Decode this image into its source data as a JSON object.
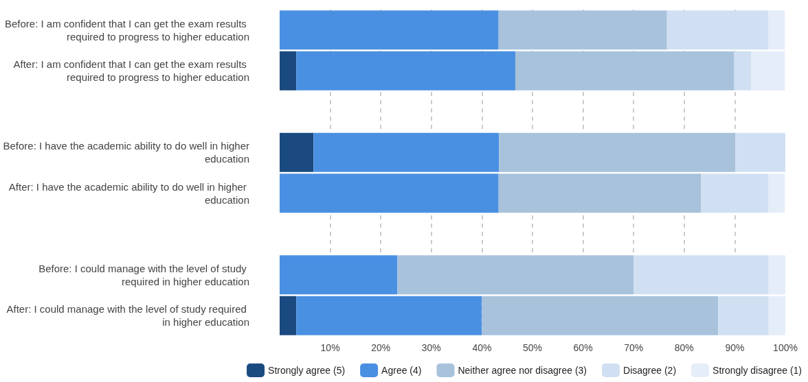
{
  "chart_data": {
    "type": "bar",
    "orientation": "horizontal",
    "stacked": true,
    "categories": [
      "Before: I am confident that I can get the exam results required to progress to higher education",
      "After: I am confident that I can get the exam results required to progress to higher education",
      null,
      "Before: I have the academic ability to do well in higher education",
      "After: I have the academic ability to do well in higher education",
      null,
      "Before: I could manage with the level of study required in higher education",
      "After: I could manage with the level of study required in higher education"
    ],
    "series": [
      {
        "name": "Strongly agree (5)",
        "color": "#1a4a80",
        "values": [
          0,
          3.3,
          null,
          6.7,
          0,
          null,
          0,
          3.3
        ]
      },
      {
        "name": "Agree (4)",
        "color": "#4a90e2",
        "values": [
          43.3,
          43.3,
          null,
          36.7,
          43.3,
          null,
          23.3,
          36.7
        ]
      },
      {
        "name": "Neither agree nor disagree (3)",
        "color": "#a8c2dc",
        "values": [
          33.3,
          43.3,
          null,
          46.7,
          40,
          null,
          46.7,
          46.7
        ]
      },
      {
        "name": "Disagree (2)",
        "color": "#d0e0f2",
        "values": [
          20,
          3.3,
          null,
          10,
          13.3,
          null,
          26.7,
          10
        ]
      },
      {
        "name": "Strongly disagree (1)",
        "color": "#e4edf8",
        "values": [
          3.3,
          6.7,
          null,
          0,
          3.3,
          null,
          3.3,
          3.3
        ]
      }
    ],
    "xlim": [
      0,
      100
    ],
    "xticks": [
      {
        "value": 10,
        "label": "10%"
      },
      {
        "value": 20,
        "label": "20%"
      },
      {
        "value": 30,
        "label": "30%"
      },
      {
        "value": 40,
        "label": "40%"
      },
      {
        "value": 50,
        "label": "50%"
      },
      {
        "value": 60,
        "label": "60%"
      },
      {
        "value": 70,
        "label": "70%"
      },
      {
        "value": 80,
        "label": "80%"
      },
      {
        "value": 90,
        "label": "90%"
      },
      {
        "value": 100,
        "label": "100%"
      }
    ],
    "grid": "x",
    "legend": "bottom"
  }
}
